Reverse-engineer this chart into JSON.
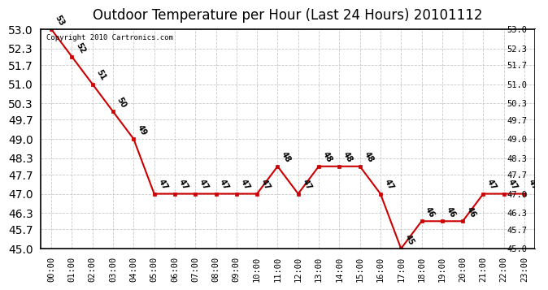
{
  "title": "Outdoor Temperature per Hour (Last 24 Hours) 20101112",
  "copyright_text": "Copyright 2010 Cartronics.com",
  "hours": [
    "00:00",
    "01:00",
    "02:00",
    "03:00",
    "04:00",
    "05:00",
    "06:00",
    "07:00",
    "08:00",
    "09:00",
    "10:00",
    "11:00",
    "12:00",
    "13:00",
    "14:00",
    "15:00",
    "16:00",
    "17:00",
    "18:00",
    "19:00",
    "20:00",
    "21:00",
    "22:00",
    "23:00"
  ],
  "temps": [
    53,
    52,
    51,
    50,
    49,
    47,
    47,
    47,
    47,
    47,
    47,
    48,
    47,
    48,
    48,
    48,
    47,
    45,
    46,
    46,
    46,
    47,
    47,
    47
  ],
  "ylim_min": 45.0,
  "ylim_max": 53.0,
  "yticks": [
    45.0,
    45.7,
    46.3,
    47.0,
    47.7,
    48.3,
    49.0,
    49.7,
    50.3,
    51.0,
    51.7,
    52.3,
    53.0
  ],
  "ytick_labels": [
    "45.0",
    "45.7",
    "46.3",
    "47.0",
    "47.7",
    "48.3",
    "49.0",
    "49.7",
    "50.3",
    "51.0",
    "51.7",
    "52.3",
    "53.0"
  ],
  "line_color": "#cc0000",
  "marker_color": "#cc0000",
  "bg_color": "#ffffff",
  "grid_color": "#bbbbbb",
  "title_fontsize": 12,
  "tick_fontsize": 7.5
}
